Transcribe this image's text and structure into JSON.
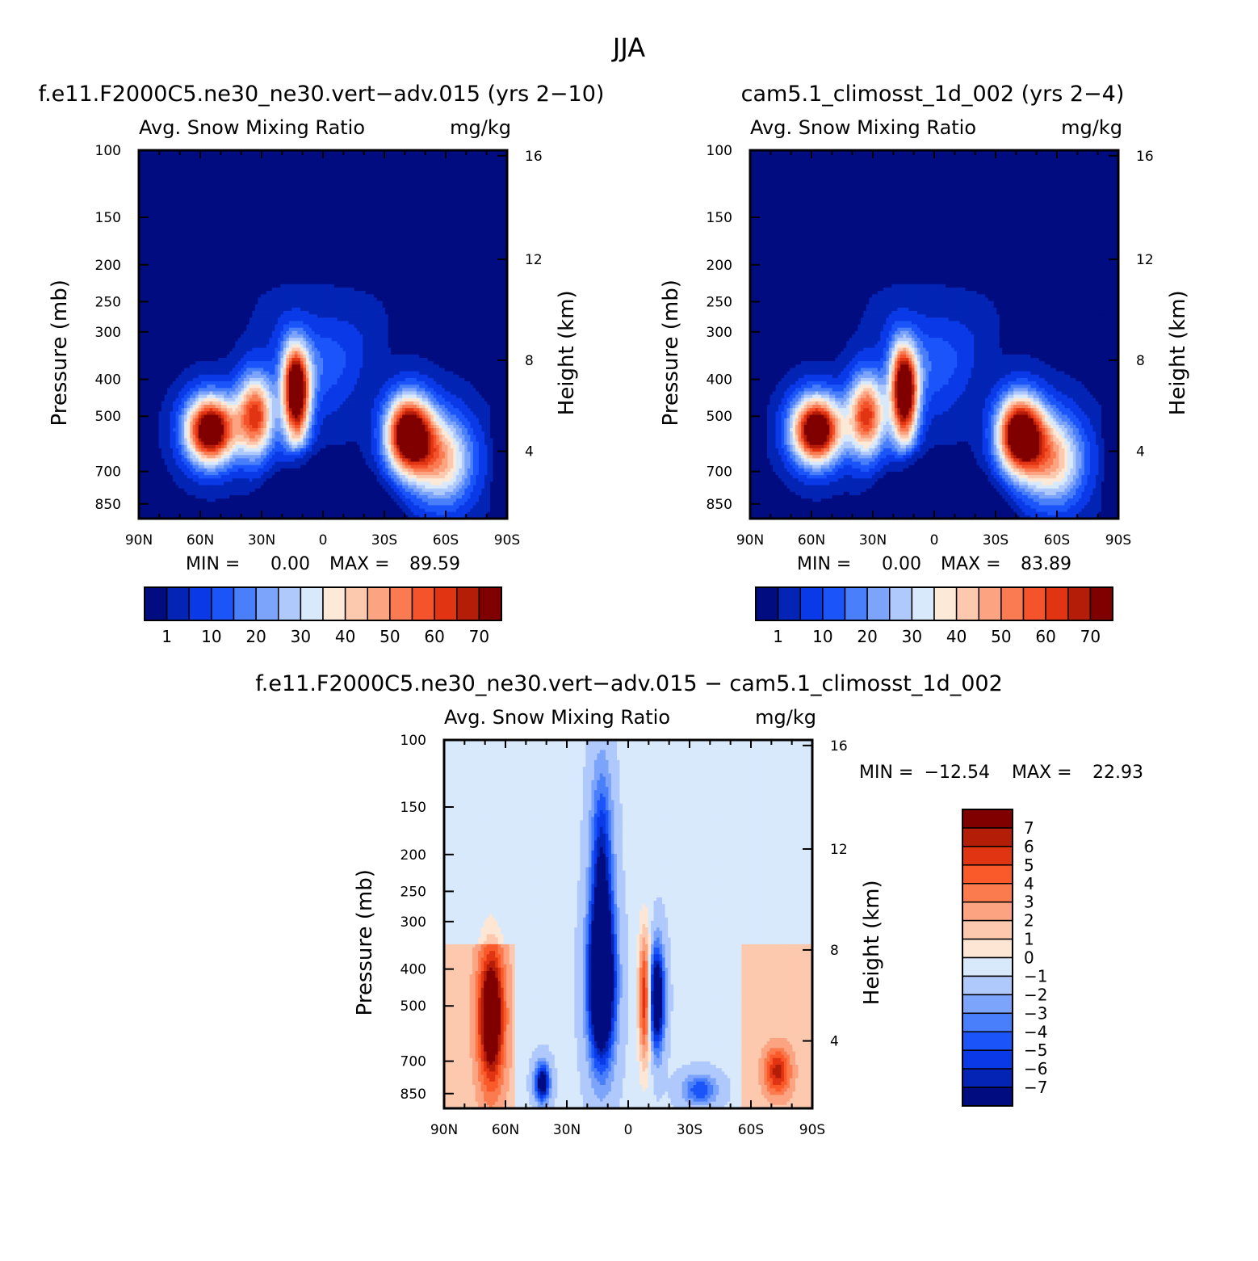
{
  "figure_title": "JJA",
  "chart_data": [
    {
      "type": "heatmap",
      "title": "f.e11.F2000C5.ne30_ne30.vert-adv.015 (yrs 2-10)",
      "subtitle_left": "Avg. Snow Mixing Ratio",
      "subtitle_right": "mg/kg",
      "ylabel": "Pressure (mb)",
      "y2label": "Height (km)",
      "x_ticks": [
        "90N",
        "60N",
        "30N",
        "0",
        "30S",
        "60S",
        "90S"
      ],
      "y_ticks": [
        "100",
        "150",
        "200",
        "250",
        "300",
        "400",
        "500",
        "700",
        "850"
      ],
      "y2_ticks": [
        "16",
        "12",
        "8",
        "4"
      ],
      "stats": {
        "min_label": "MIN =",
        "min": "0.00",
        "max_label": "MAX =",
        "max": "89.59"
      },
      "levels": [
        "1",
        "10",
        "20",
        "30",
        "40",
        "50",
        "60",
        "70"
      ],
      "colors": [
        "#000c80",
        "#0324b4",
        "#0a3ae8",
        "#1b55fa",
        "#4a7ffb",
        "#7da4fb",
        "#b0c9fc",
        "#d8e9fc",
        "#fde9d8",
        "#fcc9ae",
        "#fca482",
        "#fa7a52",
        "#f5532b",
        "#e13412",
        "#b41d08",
        "#800000"
      ]
    },
    {
      "type": "heatmap",
      "title": "cam5.1_climosst_1d_002 (yrs 2-4)",
      "subtitle_left": "Avg. Snow Mixing Ratio",
      "subtitle_right": "mg/kg",
      "ylabel": "Pressure (mb)",
      "y2label": "Height (km)",
      "x_ticks": [
        "90N",
        "60N",
        "30N",
        "0",
        "30S",
        "60S",
        "90S"
      ],
      "y_ticks": [
        "100",
        "150",
        "200",
        "250",
        "300",
        "400",
        "500",
        "700",
        "850"
      ],
      "y2_ticks": [
        "16",
        "12",
        "8",
        "4"
      ],
      "stats": {
        "min_label": "MIN =",
        "min": "0.00",
        "max_label": "MAX =",
        "max": "83.89"
      },
      "levels": [
        "1",
        "10",
        "20",
        "30",
        "40",
        "50",
        "60",
        "70"
      ],
      "colors": [
        "#000c80",
        "#0324b4",
        "#0a3ae8",
        "#1b55fa",
        "#4a7ffb",
        "#7da4fb",
        "#b0c9fc",
        "#d8e9fc",
        "#fde9d8",
        "#fcc9ae",
        "#fca482",
        "#fa7a52",
        "#f5532b",
        "#e13412",
        "#b41d08",
        "#800000"
      ]
    },
    {
      "type": "heatmap",
      "title": "f.e11.F2000C5.ne30_ne30.vert-adv.015 - cam5.1_climosst_1d_002",
      "subtitle_left": "Avg. Snow Mixing Ratio",
      "subtitle_right": "mg/kg",
      "ylabel": "Pressure (mb)",
      "y2label": "Height (km)",
      "x_ticks": [
        "90N",
        "60N",
        "30N",
        "0",
        "30S",
        "60S",
        "90S"
      ],
      "y_ticks": [
        "100",
        "150",
        "200",
        "250",
        "300",
        "400",
        "500",
        "700",
        "850"
      ],
      "y2_ticks": [
        "16",
        "12",
        "8",
        "4"
      ],
      "stats": {
        "min_label": "MIN =",
        "min": "-12.54",
        "max_label": "MAX =",
        "max": "22.93"
      },
      "levels": [
        "7",
        "6",
        "5",
        "4",
        "3",
        "2",
        "1",
        "0",
        "-1",
        "-2",
        "-3",
        "-4",
        "-5",
        "-6",
        "-7"
      ],
      "colors": [
        "#800000",
        "#b41d08",
        "#e13412",
        "#fa5a2a",
        "#fb7a4e",
        "#fca482",
        "#fcc9ae",
        "#fde6d4",
        "#d8e9fc",
        "#b0c9fc",
        "#7da4fb",
        "#4a7ffb",
        "#1b55fa",
        "#0a3ae8",
        "#0324b4",
        "#000c80"
      ]
    }
  ]
}
